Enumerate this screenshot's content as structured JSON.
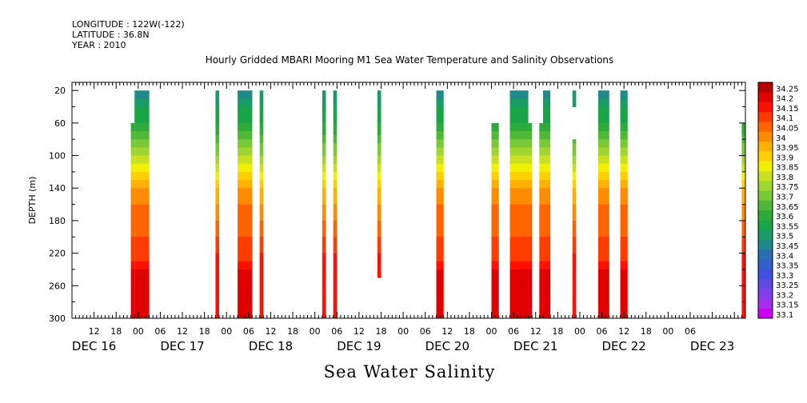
{
  "header": {
    "longitude": "LONGITUDE : 122W(-122)",
    "latitude": "LATITUDE : 36.8N",
    "year": "YEAR : 2010"
  },
  "title": "Hourly Gridded MBARI Mooring M1 Sea Water Temperature and Salinity Observations",
  "footer_title": "Sea Water Salinity",
  "chart_data": {
    "type": "heatmap",
    "title": "Hourly Gridded MBARI Mooring M1 Sea Water Temperature and Salinity Observations",
    "subtitle": "Sea Water Salinity",
    "xlabel": "",
    "ylabel": "DEPTH (m)",
    "x_range_hours": [
      0,
      183
    ],
    "y_range_m": [
      10,
      300
    ],
    "y_reversed": true,
    "y_ticks": [
      20,
      60,
      100,
      140,
      180,
      220,
      260,
      300
    ],
    "x_hour_tick_labels": [
      "12",
      "18",
      "00",
      "06",
      "12",
      "18",
      "00",
      "06",
      "12",
      "18",
      "00",
      "06",
      "12",
      "18",
      "00",
      "06",
      "12",
      "18",
      "00",
      "06",
      "12",
      "18",
      "00",
      "06",
      "12",
      "18",
      "00",
      "06"
    ],
    "x_day_labels": [
      {
        "label": "DEC 16",
        "hour": 12
      },
      {
        "label": "DEC 17",
        "hour": 36
      },
      {
        "label": "DEC 18",
        "hour": 60
      },
      {
        "label": "DEC 19",
        "hour": 84
      },
      {
        "label": "DEC 20",
        "hour": 108
      },
      {
        "label": "DEC 21",
        "hour": 132
      },
      {
        "label": "DEC 22",
        "hour": 156
      },
      {
        "label": "DEC 23",
        "hour": 180
      }
    ],
    "colorbar": {
      "levels": [
        "33.1",
        "33.15",
        "33.2",
        "33.25",
        "33.3",
        "33.35",
        "33.4",
        "33.45",
        "33.5",
        "33.55",
        "33.6",
        "33.65",
        "33.7",
        "33.75",
        "33.8",
        "33.85",
        "33.9",
        "33.95",
        "34",
        "34.05",
        "34.1",
        "34.15",
        "34.2",
        "34.25"
      ],
      "colors": [
        "#cc00ee",
        "#a030ee",
        "#8040e8",
        "#6048e0",
        "#4050e0",
        "#3060c8",
        "#2a70b0",
        "#208a8a",
        "#1a9a66",
        "#1aa448",
        "#2eaa3a",
        "#50b838",
        "#78c838",
        "#a0d430",
        "#c8e020",
        "#f0f000",
        "#ffd000",
        "#ffb000",
        "#ff8c00",
        "#ff6400",
        "#ff3c00",
        "#ff1000",
        "#e00000",
        "#b00000"
      ]
    },
    "segments": [
      {
        "start_hour": 16,
        "end_hour": 17,
        "top_m": 60,
        "bottom_m": 300,
        "shape": "wide"
      },
      {
        "start_hour": 17,
        "end_hour": 21,
        "top_m": 20,
        "bottom_m": 300,
        "shape": "wide"
      },
      {
        "start_hour": 39,
        "end_hour": 40,
        "top_m": 20,
        "bottom_m": 300,
        "shape": "narrow"
      },
      {
        "start_hour": 45,
        "end_hour": 49,
        "top_m": 20,
        "bottom_m": 300,
        "shape": "wide"
      },
      {
        "start_hour": 51,
        "end_hour": 52,
        "top_m": 20,
        "bottom_m": 300,
        "shape": "narrow"
      },
      {
        "start_hour": 68,
        "end_hour": 69,
        "top_m": 20,
        "bottom_m": 300,
        "shape": "narrow"
      },
      {
        "start_hour": 71,
        "end_hour": 72,
        "top_m": 20,
        "bottom_m": 300,
        "shape": "narrow"
      },
      {
        "start_hour": 83,
        "end_hour": 84,
        "top_m": 20,
        "bottom_m": 250,
        "shape": "narrow"
      },
      {
        "start_hour": 99,
        "end_hour": 101,
        "top_m": 20,
        "bottom_m": 300,
        "shape": "wide"
      },
      {
        "start_hour": 114,
        "end_hour": 116,
        "top_m": 60,
        "bottom_m": 300,
        "shape": "wide"
      },
      {
        "start_hour": 119,
        "end_hour": 124,
        "top_m": 20,
        "bottom_m": 300,
        "shape": "wide"
      },
      {
        "start_hour": 124,
        "end_hour": 125,
        "top_m": 60,
        "bottom_m": 300,
        "shape": "wide"
      },
      {
        "start_hour": 127,
        "end_hour": 128,
        "top_m": 60,
        "bottom_m": 300,
        "shape": "wide"
      },
      {
        "start_hour": 128,
        "end_hour": 130,
        "top_m": 20,
        "bottom_m": 300,
        "shape": "wide"
      },
      {
        "start_hour": 136,
        "end_hour": 137,
        "top_m": 20,
        "bottom_m": 40,
        "shape": "narrow"
      },
      {
        "start_hour": 136,
        "end_hour": 137,
        "top_m": 80,
        "bottom_m": 300,
        "shape": "narrow"
      },
      {
        "start_hour": 143,
        "end_hour": 146,
        "top_m": 20,
        "bottom_m": 300,
        "shape": "wide"
      },
      {
        "start_hour": 149,
        "end_hour": 151,
        "top_m": 20,
        "bottom_m": 300,
        "shape": "wide"
      },
      {
        "start_hour": 182,
        "end_hour": 183,
        "top_m": 60,
        "bottom_m": 300,
        "shape": "narrow"
      }
    ],
    "profiles": {
      "wide": [
        {
          "depth": 20,
          "salinity": 33.45
        },
        {
          "depth": 40,
          "salinity": 33.55
        },
        {
          "depth": 60,
          "salinity": 33.6
        },
        {
          "depth": 80,
          "salinity": 33.7
        },
        {
          "depth": 100,
          "salinity": 33.8
        },
        {
          "depth": 120,
          "salinity": 33.9
        },
        {
          "depth": 140,
          "salinity": 34.0
        },
        {
          "depth": 160,
          "salinity": 34.05
        },
        {
          "depth": 200,
          "salinity": 34.1
        },
        {
          "depth": 230,
          "salinity": 34.15
        },
        {
          "depth": 250,
          "salinity": 34.25
        },
        {
          "depth": 270,
          "salinity": 34.2
        },
        {
          "depth": 300,
          "salinity": 34.2
        }
      ],
      "narrow": [
        {
          "depth": 20,
          "salinity": 33.5
        },
        {
          "depth": 60,
          "salinity": 33.6
        },
        {
          "depth": 100,
          "salinity": 33.75
        },
        {
          "depth": 140,
          "salinity": 33.95
        },
        {
          "depth": 180,
          "salinity": 34.05
        },
        {
          "depth": 220,
          "salinity": 34.15
        },
        {
          "depth": 260,
          "salinity": 34.2
        },
        {
          "depth": 300,
          "salinity": 34.15
        }
      ]
    }
  }
}
